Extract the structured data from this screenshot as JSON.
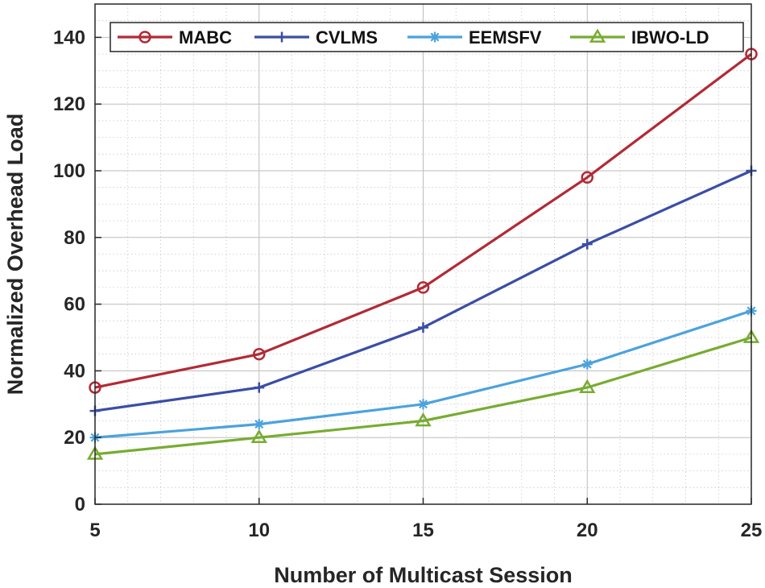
{
  "chart_data": {
    "type": "line",
    "xlabel": "Number of Multicast Session",
    "ylabel": "Normalized Overhead Load",
    "x": [
      5,
      10,
      15,
      20,
      25
    ],
    "xlim": [
      5,
      25
    ],
    "ylim": [
      0,
      150
    ],
    "xticks": [
      5,
      10,
      15,
      20,
      25
    ],
    "yticks": [
      0,
      20,
      40,
      60,
      80,
      100,
      120,
      140
    ],
    "grid": true,
    "minor_grid": true,
    "legend_position": "top",
    "series": [
      {
        "name": "MABC",
        "values": [
          35,
          45,
          65,
          98,
          135
        ],
        "color": "#b22a35",
        "marker": "circle"
      },
      {
        "name": "CVLMS",
        "values": [
          28,
          35,
          53,
          78,
          100
        ],
        "color": "#3a4ea6",
        "marker": "plus"
      },
      {
        "name": "EEMSFV",
        "values": [
          20,
          24,
          30,
          42,
          58
        ],
        "color": "#4ba3dd",
        "marker": "asterisk"
      },
      {
        "name": "IBWO-LD",
        "values": [
          15,
          20,
          25,
          35,
          50
        ],
        "color": "#77ac30",
        "marker": "triangle"
      }
    ]
  }
}
